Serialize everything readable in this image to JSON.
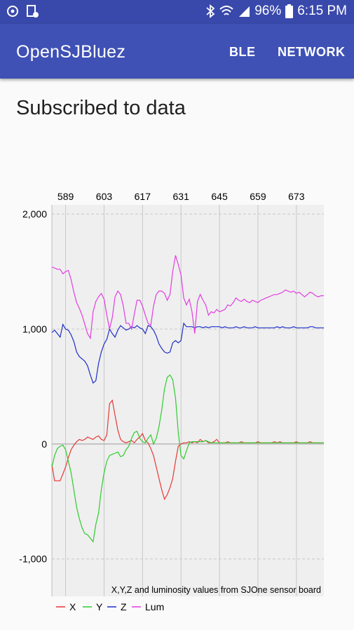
{
  "status_bar": {
    "left_icons": [
      "sync-icon",
      "image-icon"
    ],
    "right_icons": [
      "bluetooth-icon",
      "wifi-icon",
      "cellular-signal-icon",
      "battery-icon"
    ],
    "battery": "96%",
    "time": "6:15 PM"
  },
  "app_bar": {
    "title": "OpenSJBluez",
    "actions": [
      "BLE",
      "NETWORK"
    ],
    "background": "#3f51b5",
    "status_background": "#3949ab"
  },
  "heading": "Subscribed to data",
  "chart_data": {
    "type": "line",
    "description": "X,Y,Z and luminosity values from SJOne sensor board",
    "x_ticks": [
      "589",
      "603",
      "617",
      "631",
      "645",
      "659",
      "673"
    ],
    "y_ticks": [
      "2,000",
      "1,000",
      "0",
      "-1,000"
    ],
    "xlim": [
      584,
      683
    ],
    "ylim": [
      -1325,
      2080
    ],
    "grid": true,
    "legend_position": "bottom-left",
    "x": [
      584,
      585,
      586,
      587,
      588,
      589,
      590,
      591,
      592,
      593,
      594,
      595,
      596,
      597,
      598,
      599,
      600,
      601,
      602,
      603,
      604,
      605,
      606,
      607,
      608,
      609,
      610,
      611,
      612,
      613,
      614,
      615,
      616,
      617,
      618,
      619,
      620,
      621,
      622,
      623,
      624,
      625,
      626,
      627,
      628,
      629,
      630,
      631,
      632,
      633,
      634,
      635,
      636,
      637,
      638,
      639,
      640,
      641,
      642,
      643,
      644,
      645,
      646,
      647,
      648,
      649,
      650,
      651,
      652,
      653,
      654,
      655,
      656,
      657,
      658,
      659,
      660,
      661,
      662,
      663,
      664,
      665,
      666,
      667,
      668,
      669,
      670,
      671,
      672,
      673,
      674,
      675,
      676,
      677,
      678,
      679,
      680,
      681,
      682,
      683
    ],
    "series": [
      {
        "name": "X",
        "color": "#e53935",
        "values": [
          -180,
          -320,
          -320,
          -320,
          -260,
          -200,
          -120,
          -50,
          -10,
          20,
          40,
          30,
          40,
          60,
          50,
          40,
          60,
          70,
          40,
          30,
          80,
          350,
          380,
          250,
          120,
          40,
          20,
          10,
          20,
          30,
          10,
          40,
          60,
          90,
          30,
          10,
          -40,
          -100,
          -200,
          -300,
          -400,
          -480,
          -440,
          -380,
          -300,
          -150,
          -20,
          0,
          10,
          10,
          20,
          10,
          20,
          10,
          40,
          20,
          30,
          10,
          10,
          20,
          40,
          10,
          10,
          10,
          20,
          10,
          10,
          10,
          10,
          20,
          10,
          10,
          10,
          10,
          10,
          20,
          10,
          10,
          10,
          10,
          10,
          20,
          10,
          20,
          10,
          10,
          10,
          10,
          10,
          20,
          10,
          10,
          10,
          10,
          20,
          10,
          10,
          10,
          10,
          10
        ]
      },
      {
        "name": "Y",
        "color": "#2ecc2e",
        "values": [
          -200,
          -100,
          -40,
          -20,
          -10,
          -50,
          -150,
          -250,
          -400,
          -550,
          -650,
          -730,
          -780,
          -790,
          -820,
          -850,
          -700,
          -600,
          -400,
          -250,
          -150,
          -100,
          -90,
          -80,
          -70,
          -110,
          -100,
          -50,
          -20,
          50,
          100,
          110,
          50,
          20,
          10,
          50,
          80,
          0,
          50,
          150,
          300,
          480,
          580,
          600,
          560,
          400,
          100,
          -100,
          -130,
          -60,
          10,
          20,
          20,
          20,
          20,
          20,
          30,
          20,
          10,
          10,
          10,
          10,
          10,
          10,
          10,
          10,
          10,
          10,
          10,
          10,
          10,
          10,
          10,
          10,
          10,
          10,
          10,
          10,
          10,
          10,
          10,
          10,
          10,
          10,
          10,
          10,
          10,
          10,
          10,
          10,
          10,
          10,
          10,
          10,
          10,
          10,
          10,
          10,
          10,
          10
        ]
      },
      {
        "name": "Z",
        "color": "#1f2ec9",
        "values": [
          970,
          990,
          960,
          930,
          1040,
          1000,
          990,
          950,
          890,
          800,
          760,
          740,
          720,
          680,
          600,
          530,
          550,
          700,
          800,
          870,
          910,
          1000,
          960,
          930,
          990,
          1030,
          1010,
          990,
          1000,
          1020,
          1010,
          1030,
          1010,
          1000,
          960,
          1030,
          1020,
          990,
          940,
          870,
          830,
          800,
          790,
          800,
          880,
          900,
          880,
          900,
          1050,
          1020,
          1020,
          1020,
          1010,
          1020,
          1020,
          1010,
          1020,
          1010,
          1020,
          1020,
          1020,
          1020,
          1010,
          1020,
          1010,
          1010,
          1010,
          1020,
          1010,
          1010,
          1020,
          1010,
          1010,
          1010,
          1020,
          1010,
          1010,
          1010,
          1010,
          1010,
          1010,
          1010,
          1020,
          1010,
          1020,
          1010,
          1010,
          1010,
          1020,
          1010,
          1010,
          1010,
          1010,
          1010,
          1020,
          1020,
          1010,
          1010,
          1010,
          1010
        ]
      },
      {
        "name": "Lum",
        "color": "#e23ee2",
        "values": [
          1540,
          1530,
          1520,
          1520,
          1480,
          1500,
          1510,
          1430,
          1320,
          1230,
          1180,
          1120,
          1040,
          960,
          920,
          1150,
          1240,
          1280,
          1310,
          1260,
          1120,
          1000,
          1100,
          1280,
          1330,
          1300,
          1200,
          1050,
          1050,
          1000,
          1130,
          1250,
          1250,
          1200,
          1120,
          1050,
          1030,
          1200,
          1300,
          1330,
          1330,
          1310,
          1250,
          1300,
          1500,
          1640,
          1560,
          1470,
          1270,
          1210,
          1260,
          1150,
          960,
          1240,
          1300,
          1250,
          1210,
          1120,
          1150,
          1140,
          1170,
          1150,
          1160,
          1170,
          1210,
          1200,
          1230,
          1270,
          1250,
          1240,
          1260,
          1240,
          1230,
          1250,
          1240,
          1230,
          1250,
          1260,
          1270,
          1280,
          1290,
          1300,
          1300,
          1310,
          1320,
          1340,
          1330,
          1320,
          1330,
          1310,
          1320,
          1300,
          1280,
          1300,
          1320,
          1310,
          1290,
          1280,
          1290,
          1290
        ]
      }
    ]
  }
}
